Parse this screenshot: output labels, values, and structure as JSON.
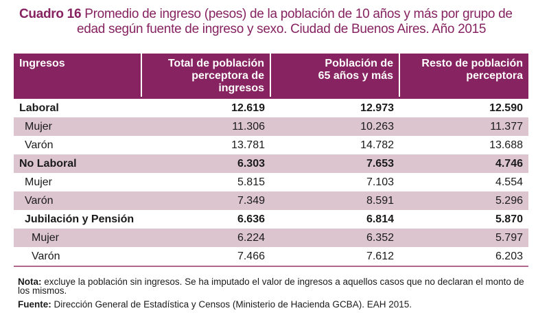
{
  "title": {
    "label": "Cuadro 16",
    "line1": "Promedio de ingreso (pesos) de la población de 10 años y más por grupo de",
    "line2": "edad según fuente de ingreso y sexo. Ciudad de Buenos Aires. Año 2015"
  },
  "table": {
    "headers": [
      "Ingresos",
      "Total de población perceptora de ingresos",
      "Población de 65 años y más",
      "Resto de población perceptora"
    ],
    "header_lines": [
      [
        "Ingresos"
      ],
      [
        "Total de población",
        "perceptora de ingresos"
      ],
      [
        "Población de",
        "65 años y más"
      ],
      [
        "Resto de población",
        "perceptora"
      ]
    ],
    "rows": [
      {
        "label": "Laboral",
        "total": "12.619",
        "mayores65": "12.973",
        "resto": "12.590"
      },
      {
        "label": "Mujer",
        "total": "11.306",
        "mayores65": "10.263",
        "resto": "11.377"
      },
      {
        "label": "Varón",
        "total": "13.781",
        "mayores65": "14.782",
        "resto": "13.688"
      },
      {
        "label": "No Laboral",
        "total": "6.303",
        "mayores65": "7.653",
        "resto": "4.746"
      },
      {
        "label": "Mujer",
        "total": "5.815",
        "mayores65": "7.103",
        "resto": "4.554"
      },
      {
        "label": "Varón",
        "total": "7.349",
        "mayores65": "8.591",
        "resto": "5.296"
      },
      {
        "label": "Jubilación y Pensión",
        "total": "6.636",
        "mayores65": "6.814",
        "resto": "5.870"
      },
      {
        "label": "Mujer",
        "total": "6.224",
        "mayores65": "6.352",
        "resto": "5.797"
      },
      {
        "label": "Varón",
        "total": "7.466",
        "mayores65": "7.612",
        "resto": "6.203"
      }
    ]
  },
  "notes": {
    "nota_label": "Nota:",
    "nota_text": " excluye la población sin ingresos. Se ha imputado el valor de ingresos a aquellos casos que no declaran el monto de los mismos.",
    "fuente_label": "Fuente:",
    "fuente_text": " Dirección General de Estadística y Censos (Ministerio de Hacienda GCBA). EAH 2015."
  },
  "colors": {
    "accent": "#862360",
    "row_shade": "#dcc5cf"
  }
}
